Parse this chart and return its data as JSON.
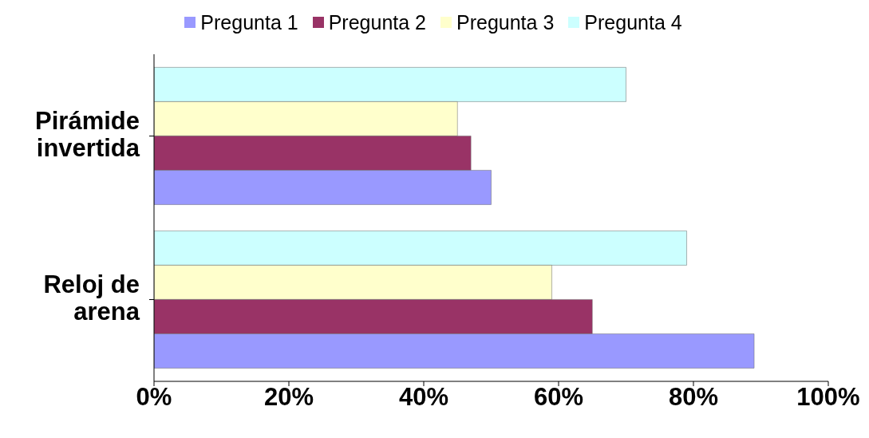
{
  "chart_data": {
    "type": "bar",
    "orientation": "horizontal",
    "categories": [
      "Pirámide invertida",
      "Reloj de arena"
    ],
    "series": [
      {
        "name": "Pregunta 1",
        "color": "#9999ff",
        "values": [
          50,
          89
        ]
      },
      {
        "name": "Pregunta 2",
        "color": "#993366",
        "values": [
          47,
          65
        ]
      },
      {
        "name": "Pregunta 3",
        "color": "#ffffcc",
        "values": [
          45,
          59
        ]
      },
      {
        "name": "Pregunta 4",
        "color": "#ccffff",
        "values": [
          70,
          79
        ]
      }
    ],
    "xlim": [
      0,
      100
    ],
    "xticks": [
      {
        "value": 0,
        "label": "0%"
      },
      {
        "value": 20,
        "label": "20%"
      },
      {
        "value": 40,
        "label": "40%"
      },
      {
        "value": 60,
        "label": "60%"
      },
      {
        "value": 80,
        "label": "80%"
      },
      {
        "value": 100,
        "label": "100%"
      }
    ],
    "legend": "top",
    "grid": false
  }
}
